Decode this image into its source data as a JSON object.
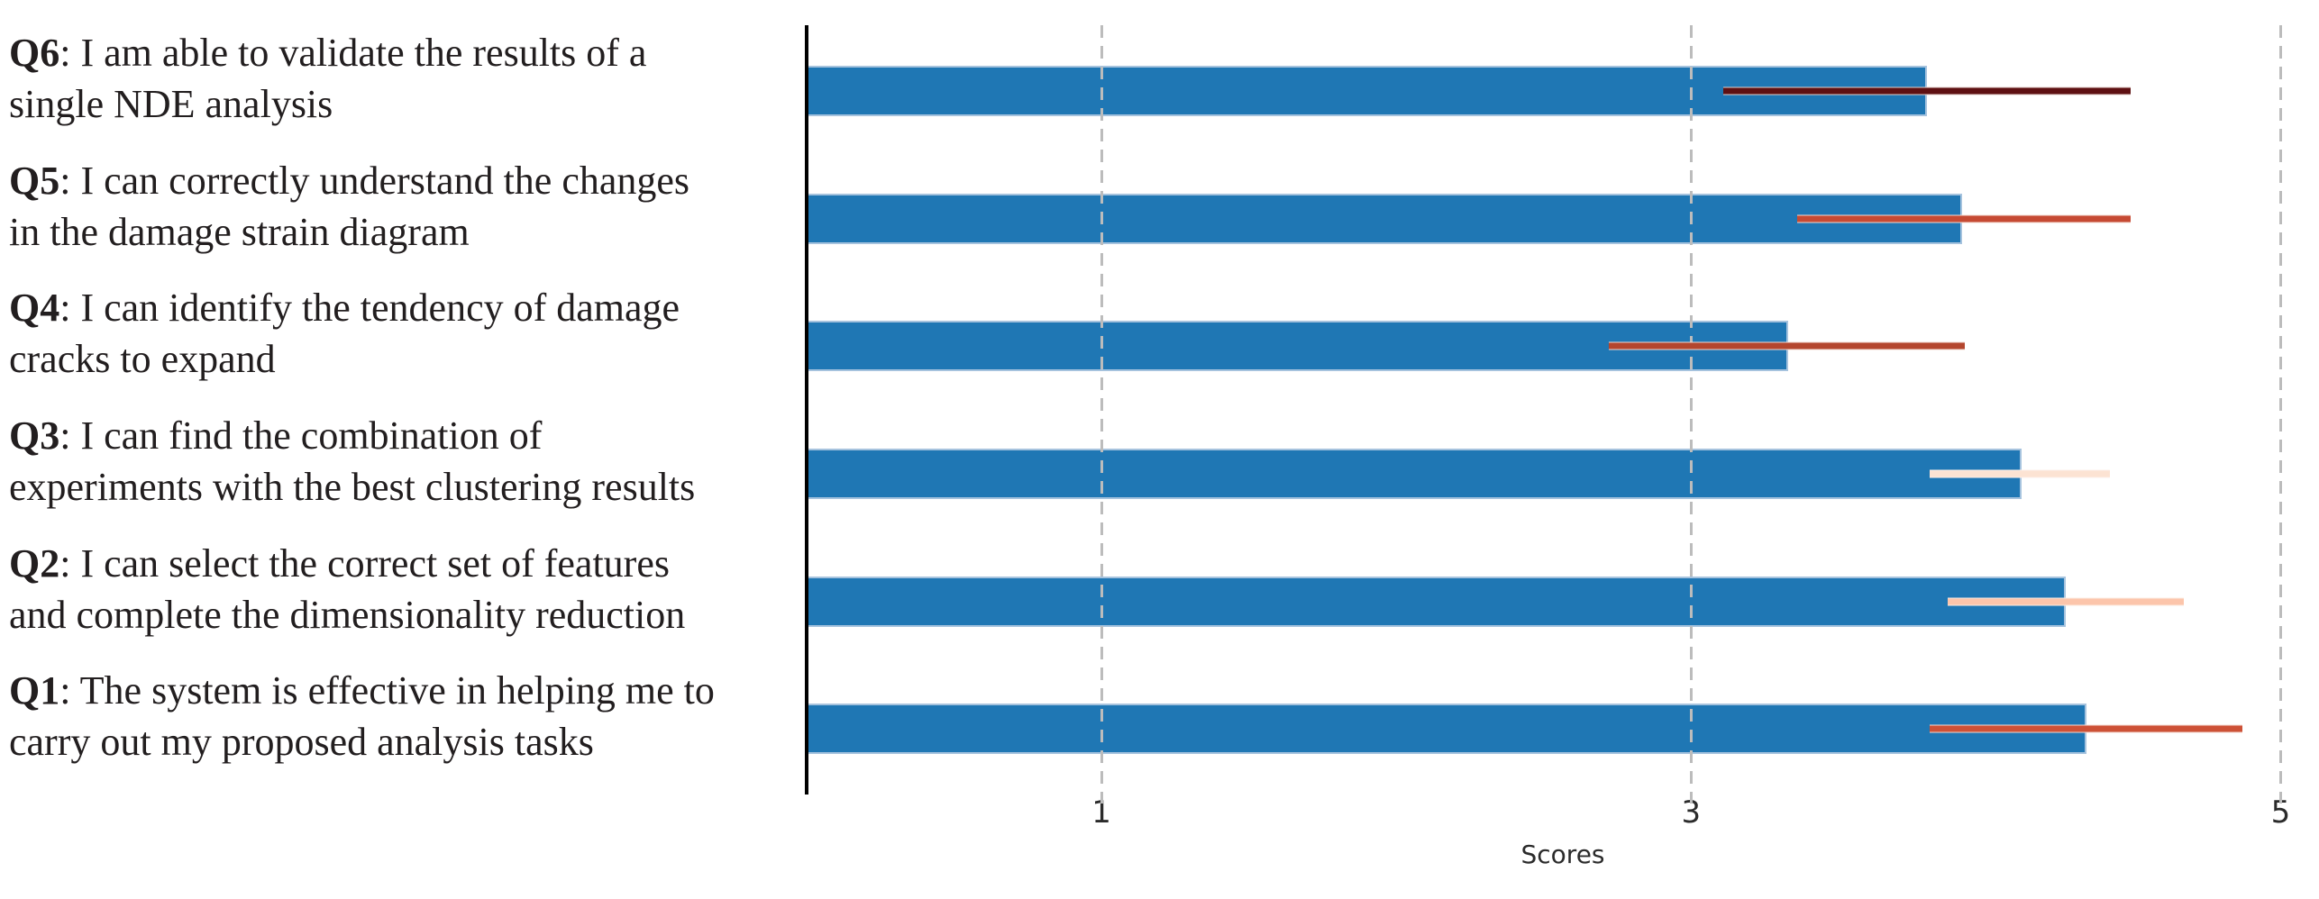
{
  "chart_data": {
    "type": "bar",
    "orientation": "horizontal",
    "title": "",
    "xlabel": "Scores",
    "xlim": [
      0,
      5.13
    ],
    "xticks": [
      1,
      3,
      5
    ],
    "tick_labels": [
      "1",
      "3",
      "5"
    ],
    "grid": "dashed vertical gridlines at ticks, drawn over bars",
    "legend": "none",
    "bar_color": "#1f77b4",
    "bar_edge_color": "#a6c3de",
    "categories_bottom_to_top": [
      "Q1",
      "Q2",
      "Q3",
      "Q4",
      "Q5",
      "Q6"
    ],
    "rows": [
      {
        "q": "Q6",
        "label_line1_rest": ": I am able to validate the results of a",
        "label_line2": "single NDE analysis",
        "mean": 3.8,
        "err_low": 3.11,
        "err_high": 4.49,
        "err_color": "#5e1012"
      },
      {
        "q": "Q5",
        "label_line1_rest": ": I can correctly understand the changes",
        "label_line2": "in the damage strain diagram",
        "mean": 3.92,
        "err_low": 3.36,
        "err_high": 4.49,
        "err_color": "#c64a33"
      },
      {
        "q": "Q4",
        "label_line1_rest": ": I can identify the tendency of damage",
        "label_line2": "cracks to expand",
        "mean": 3.33,
        "err_low": 2.72,
        "err_high": 3.93,
        "err_color": "#b4462e"
      },
      {
        "q": "Q3",
        "label_line1_rest": ": I can find the combination of",
        "label_line2": "experiments with the best clustering results",
        "mean": 4.12,
        "err_low": 3.81,
        "err_high": 4.42,
        "err_color": "#fce3d3"
      },
      {
        "q": "Q2",
        "label_line1_rest": ": I can select the correct set of features",
        "label_line2": "and complete the dimensionality reduction",
        "mean": 4.27,
        "err_low": 3.87,
        "err_high": 4.67,
        "err_color": "#fcc5ab"
      },
      {
        "q": "Q1",
        "label_line1_rest": ": The system is effective in helping me to",
        "label_line2": "carry out my proposed analysis tasks",
        "mean": 4.34,
        "err_low": 3.81,
        "err_high": 4.87,
        "err_color": "#cd5136"
      }
    ]
  }
}
